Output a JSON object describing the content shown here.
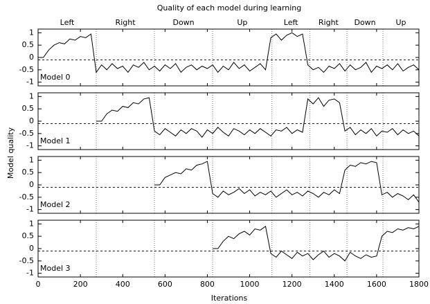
{
  "chart_data": {
    "type": "line",
    "title": "Quality of each model during learning",
    "xlabel": "Iterations",
    "ylabel": "Model quality",
    "xlim": [
      0,
      1800
    ],
    "xticks": [
      0,
      200,
      400,
      600,
      800,
      1000,
      1200,
      1400,
      1600,
      1800
    ],
    "ylim": [
      -1.15,
      1.15
    ],
    "yticks": [
      -1,
      -0.5,
      0,
      0.5,
      1
    ],
    "reference_line": -0.1,
    "phase_boundaries": [
      275,
      550,
      825,
      1105,
      1285,
      1460,
      1630
    ],
    "phase_labels": [
      "Left",
      "Right",
      "Down",
      "Up",
      "Left",
      "Right",
      "Down",
      "Up"
    ],
    "x": [
      0,
      25,
      50,
      75,
      100,
      125,
      150,
      175,
      200,
      225,
      250,
      275,
      300,
      325,
      350,
      375,
      400,
      425,
      450,
      475,
      500,
      525,
      550,
      575,
      600,
      625,
      650,
      675,
      700,
      725,
      750,
      775,
      800,
      825,
      850,
      875,
      900,
      925,
      950,
      975,
      1000,
      1025,
      1050,
      1075,
      1100,
      1125,
      1150,
      1175,
      1200,
      1225,
      1250,
      1275,
      1300,
      1325,
      1350,
      1375,
      1400,
      1425,
      1450,
      1475,
      1500,
      1525,
      1550,
      1575,
      1600,
      1625,
      1650,
      1675,
      1700,
      1725,
      1750,
      1775,
      1800
    ],
    "series": [
      {
        "name": "Model 0",
        "color": "#000000",
        "values": [
          0,
          0,
          0.3,
          0.5,
          0.6,
          0.55,
          0.75,
          0.7,
          0.85,
          0.8,
          0.95,
          -0.6,
          -0.3,
          -0.5,
          -0.25,
          -0.45,
          -0.35,
          -0.6,
          -0.3,
          -0.4,
          -0.2,
          -0.5,
          -0.35,
          -0.55,
          -0.3,
          -0.45,
          -0.25,
          -0.6,
          -0.4,
          -0.3,
          -0.5,
          -0.35,
          -0.45,
          -0.3,
          -0.6,
          -0.35,
          -0.5,
          -0.2,
          -0.45,
          -0.3,
          -0.55,
          -0.4,
          -0.25,
          -0.5,
          0.8,
          0.95,
          0.7,
          0.9,
          1,
          0.85,
          0.95,
          -0.3,
          -0.5,
          -0.4,
          -0.6,
          -0.35,
          -0.45,
          -0.25,
          -0.55,
          -0.3,
          -0.5,
          -0.4,
          -0.2,
          -0.6,
          -0.35,
          -0.45,
          -0.3,
          -0.5,
          -0.25,
          -0.55,
          -0.4,
          -0.3,
          -0.5
        ]
      },
      {
        "name": "Model 1",
        "color": "#000000",
        "values": [
          null,
          null,
          null,
          null,
          null,
          null,
          null,
          null,
          null,
          null,
          null,
          0,
          0,
          0.3,
          0.45,
          0.4,
          0.6,
          0.55,
          0.75,
          0.7,
          0.9,
          0.95,
          -0.4,
          -0.55,
          -0.3,
          -0.45,
          -0.6,
          -0.35,
          -0.5,
          -0.3,
          -0.4,
          -0.65,
          -0.35,
          -0.5,
          -0.25,
          -0.45,
          -0.6,
          -0.3,
          -0.4,
          -0.55,
          -0.35,
          -0.5,
          -0.3,
          -0.45,
          -0.6,
          -0.35,
          -0.4,
          -0.25,
          -0.5,
          -0.35,
          -0.45,
          0.9,
          0.7,
          0.95,
          0.6,
          0.85,
          0.9,
          0.75,
          -0.4,
          -0.25,
          -0.55,
          -0.35,
          -0.5,
          -0.3,
          -0.6,
          -0.4,
          -0.45,
          -0.3,
          -0.55,
          -0.35,
          -0.5,
          -0.4,
          -0.6
        ]
      },
      {
        "name": "Model 2",
        "color": "#000000",
        "values": [
          null,
          null,
          null,
          null,
          null,
          null,
          null,
          null,
          null,
          null,
          null,
          null,
          null,
          null,
          null,
          null,
          null,
          null,
          null,
          null,
          null,
          null,
          0,
          0,
          0.3,
          0.4,
          0.5,
          0.45,
          0.65,
          0.6,
          0.8,
          0.85,
          0.95,
          -0.35,
          -0.5,
          -0.25,
          -0.4,
          -0.3,
          -0.15,
          -0.35,
          -0.2,
          -0.45,
          -0.3,
          -0.4,
          -0.25,
          -0.5,
          -0.35,
          -0.2,
          -0.4,
          -0.3,
          -0.45,
          -0.25,
          -0.35,
          -0.5,
          -0.3,
          -0.4,
          -0.2,
          -0.35,
          0.6,
          0.8,
          0.75,
          0.9,
          0.85,
          0.95,
          0.9,
          -0.4,
          -0.3,
          -0.5,
          -0.35,
          -0.45,
          -0.6,
          -0.4,
          -0.7
        ]
      },
      {
        "name": "Model 3",
        "color": "#000000",
        "values": [
          null,
          null,
          null,
          null,
          null,
          null,
          null,
          null,
          null,
          null,
          null,
          null,
          null,
          null,
          null,
          null,
          null,
          null,
          null,
          null,
          null,
          null,
          null,
          null,
          null,
          null,
          null,
          null,
          null,
          null,
          null,
          null,
          null,
          0,
          0,
          0.3,
          0.5,
          0.4,
          0.6,
          0.7,
          0.55,
          0.8,
          0.75,
          0.9,
          -0.2,
          -0.35,
          -0.1,
          -0.25,
          -0.4,
          -0.15,
          -0.3,
          -0.2,
          -0.45,
          -0.25,
          -0.1,
          -0.35,
          -0.2,
          -0.3,
          -0.5,
          -0.15,
          -0.3,
          -0.4,
          -0.25,
          -0.35,
          -0.3,
          0.5,
          0.7,
          0.65,
          0.8,
          0.75,
          0.85,
          0.8,
          0.9
        ]
      }
    ]
  }
}
